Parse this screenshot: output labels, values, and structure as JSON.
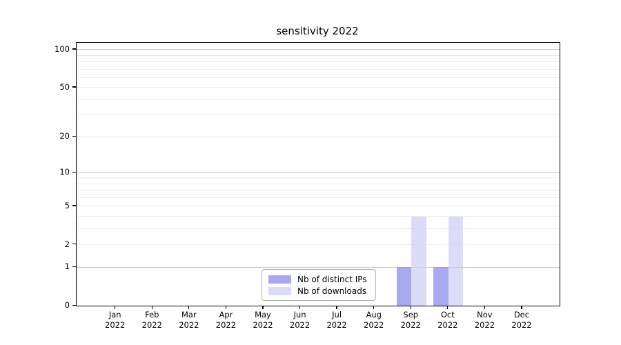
{
  "chart_data": {
    "type": "bar",
    "title": "sensitivity 2022",
    "categories": [
      "Jan",
      "Feb",
      "Mar",
      "Apr",
      "May",
      "Jun",
      "Jul",
      "Aug",
      "Sep",
      "Oct",
      "Nov",
      "Dec"
    ],
    "category_year": "2022",
    "series": [
      {
        "name": "Nb of distinct IPs",
        "color": "rgba(136,136,236,0.72)",
        "values": [
          0,
          0,
          0,
          0,
          0,
          0,
          0,
          0,
          1,
          1,
          0,
          0
        ]
      },
      {
        "name": "Nb of downloads",
        "color": "rgba(206,206,246,0.72)",
        "values": [
          0,
          0,
          0,
          0,
          0,
          0,
          0,
          0,
          4,
          4,
          0,
          0
        ]
      }
    ],
    "y_axis": {
      "scale": "log10(value+1)",
      "tick_values": [
        100,
        50,
        20,
        10,
        5,
        2,
        1,
        0
      ],
      "tick_labels": [
        "100",
        "50",
        "20",
        "10",
        "5",
        "2",
        "1",
        "0"
      ],
      "major_gridlines": [
        1,
        10,
        100
      ],
      "minor_gridlines": [
        2,
        3,
        4,
        5,
        6,
        7,
        8,
        9,
        20,
        30,
        40,
        50,
        60,
        70,
        80,
        90
      ],
      "ylim": [
        0,
        113
      ]
    },
    "x_axis": {
      "grid": false
    },
    "legend": {
      "position": "lower center"
    },
    "colors": {
      "major_grid": "#c3c3c3",
      "minor_grid": "#ebebeb",
      "spine": "#000000",
      "text": "#000000",
      "legend_border": "#b3b3b3"
    }
  }
}
